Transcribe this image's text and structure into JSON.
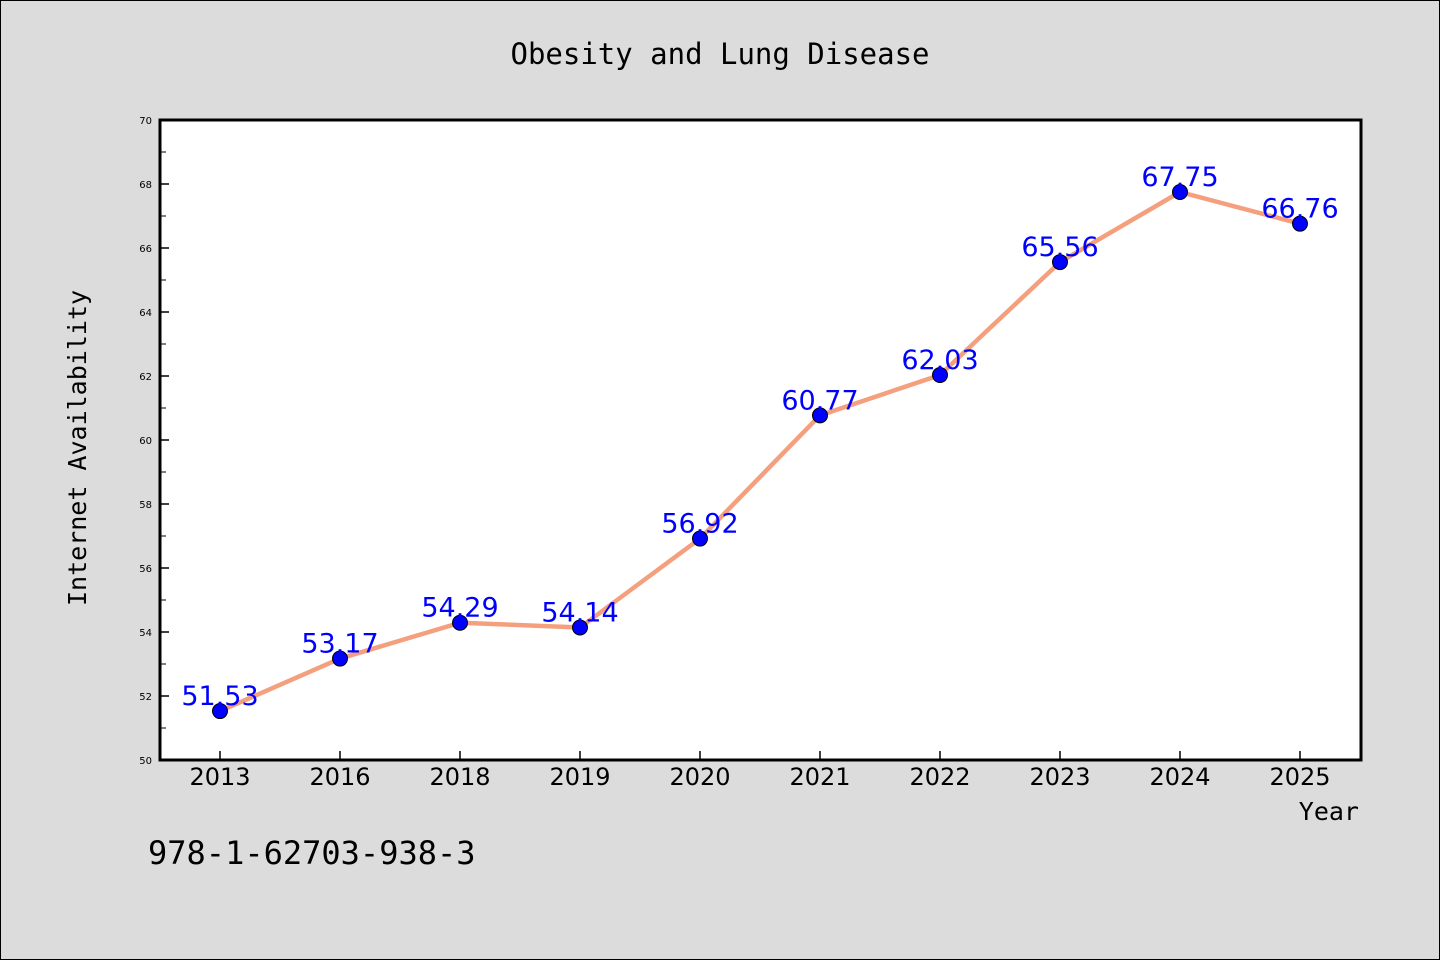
{
  "colors": {
    "background": "#dcdcdc",
    "plot_background": "#ffffff",
    "line": "#f4a07e",
    "marker": "#0000ff",
    "data_label": "#0000ff"
  },
  "footer_text": "978-1-62703-938-3",
  "chart_data": {
    "type": "line",
    "title": "Obesity and Lung Disease",
    "xlabel": "Year",
    "ylabel": "Internet Availability",
    "categories": [
      "2013",
      "2016",
      "2018",
      "2019",
      "2020",
      "2021",
      "2022",
      "2023",
      "2024",
      "2025"
    ],
    "series": [
      {
        "values": [
          51.53,
          53.17,
          54.29,
          54.14,
          56.92,
          60.77,
          62.03,
          65.56,
          67.75,
          66.76
        ]
      }
    ],
    "data_labels": [
      "51.53",
      "53.17",
      "54.29",
      "54.14",
      "56.92",
      "60.77",
      "62.03",
      "65.56",
      "67.75",
      "66.76"
    ],
    "ylim": [
      50,
      70
    ],
    "y_ticks": [
      "50",
      "52",
      "54",
      "56",
      "58",
      "60",
      "62",
      "64",
      "66",
      "68",
      "70"
    ],
    "grid": false,
    "legend": "none"
  }
}
